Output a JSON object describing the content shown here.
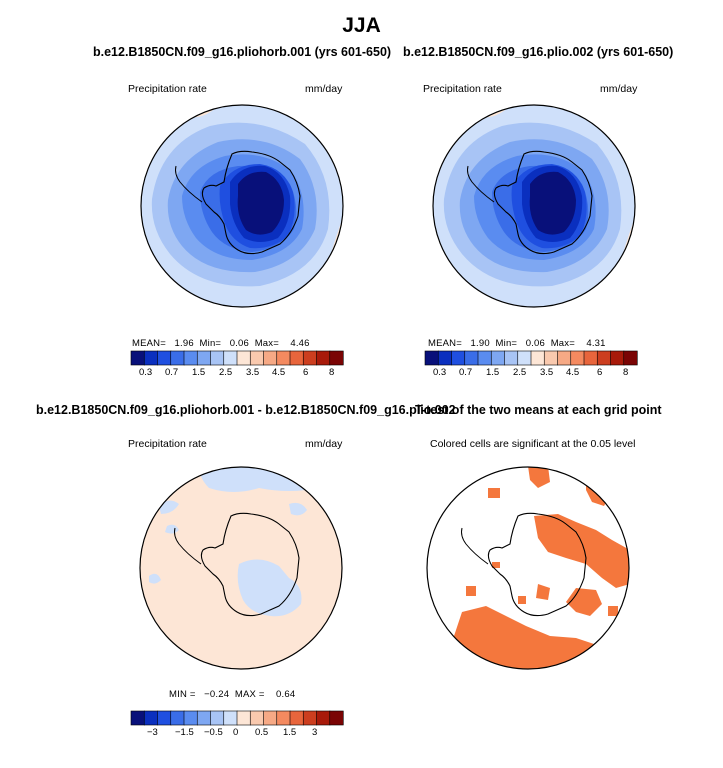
{
  "title": "JJA",
  "panels": [
    {
      "title": "b.e12.B1850CN.f09_g16.pliohorb.001 (yrs 601-650)",
      "left_label": "Precipitation rate",
      "right_label": "mm/day",
      "stats": {
        "mean_label": "MEAN=",
        "mean": "1.96",
        "min_label": "Min=",
        "min": "0.06",
        "max_label": "Max=",
        "max": "4.46"
      },
      "colorbar_ticks": [
        "0.3",
        "0.7",
        "1.5",
        "2.5",
        "3.5",
        "4.5",
        "6",
        "8"
      ]
    },
    {
      "title": "b.e12.B1850CN.f09_g16.plio.002 (yrs 601-650)",
      "left_label": "Precipitation rate",
      "right_label": "mm/day",
      "stats": {
        "mean_label": "MEAN=",
        "mean": "1.90",
        "min_label": "Min=",
        "min": "0.06",
        "max_label": "Max=",
        "max": "4.31"
      },
      "colorbar_ticks": [
        "0.3",
        "0.7",
        "1.5",
        "2.5",
        "3.5",
        "4.5",
        "6",
        "8"
      ]
    },
    {
      "title": "b.e12.B1850CN.f09_g16.pliohorb.001 - b.e12.B1850CN.f09_g16.plio.002",
      "left_label": "Precipitation rate",
      "right_label": "mm/day",
      "stats": {
        "min_label": "MIN =",
        "min": "−0.24",
        "max_label": "MAX =",
        "max": "0.64"
      },
      "colorbar_ticks": [
        "−3",
        "−1.5",
        "−0.5",
        "0",
        "0.5",
        "1.5",
        "3"
      ]
    },
    {
      "title": "T-test of the two means at each grid point",
      "left_label": "Colored cells are significant at the 0.05 level"
    }
  ],
  "colors": {
    "palette": [
      "#08107a",
      "#0a2fbf",
      "#1f4fe0",
      "#3a6de8",
      "#5a8cf0",
      "#7ea7f2",
      "#a8c4f5",
      "#cfe0fa",
      "#fde6d6",
      "#f9c9ae",
      "#f6a985",
      "#f48a60",
      "#e8653c",
      "#cc3e1f",
      "#a81a0a",
      "#7a0404"
    ],
    "significant": "#f4773d",
    "coast": "#000000"
  }
}
